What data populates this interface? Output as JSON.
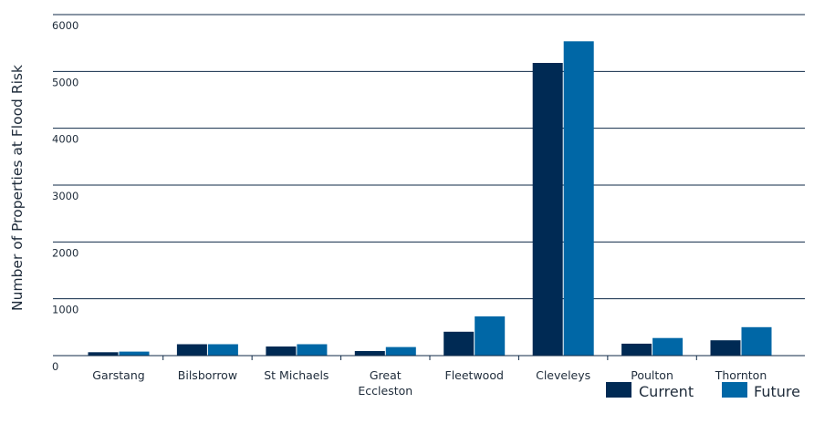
{
  "chart_data": {
    "type": "bar",
    "categories": [
      "Garstang",
      "Bilsborrow",
      "St Michaels",
      "Great Eccleston",
      "Fleetwood",
      "Cleveleys",
      "Poulton",
      "Thornton"
    ],
    "category_lines": [
      [
        "Garstang"
      ],
      [
        "Bilsborrow"
      ],
      [
        "St Michaels"
      ],
      [
        "Great",
        "Eccleston"
      ],
      [
        "Fleetwood"
      ],
      [
        "Cleveleys"
      ],
      [
        "Poulton"
      ],
      [
        "Thornton"
      ]
    ],
    "series": [
      {
        "name": "Current",
        "color": "#002a54",
        "values": [
          60,
          200,
          160,
          80,
          420,
          5150,
          210,
          270
        ]
      },
      {
        "name": "Future",
        "color": "#0067a6",
        "values": [
          70,
          200,
          200,
          150,
          690,
          5530,
          310,
          500
        ]
      }
    ],
    "ylabel": "Number of Properties at Flood Risk",
    "ylim": [
      0,
      6000
    ],
    "yticks": [
      0,
      1000,
      2000,
      3000,
      4000,
      5000,
      6000
    ],
    "grid": true,
    "legend_position": "bottom-right",
    "axis_color": "#0f2a47"
  }
}
